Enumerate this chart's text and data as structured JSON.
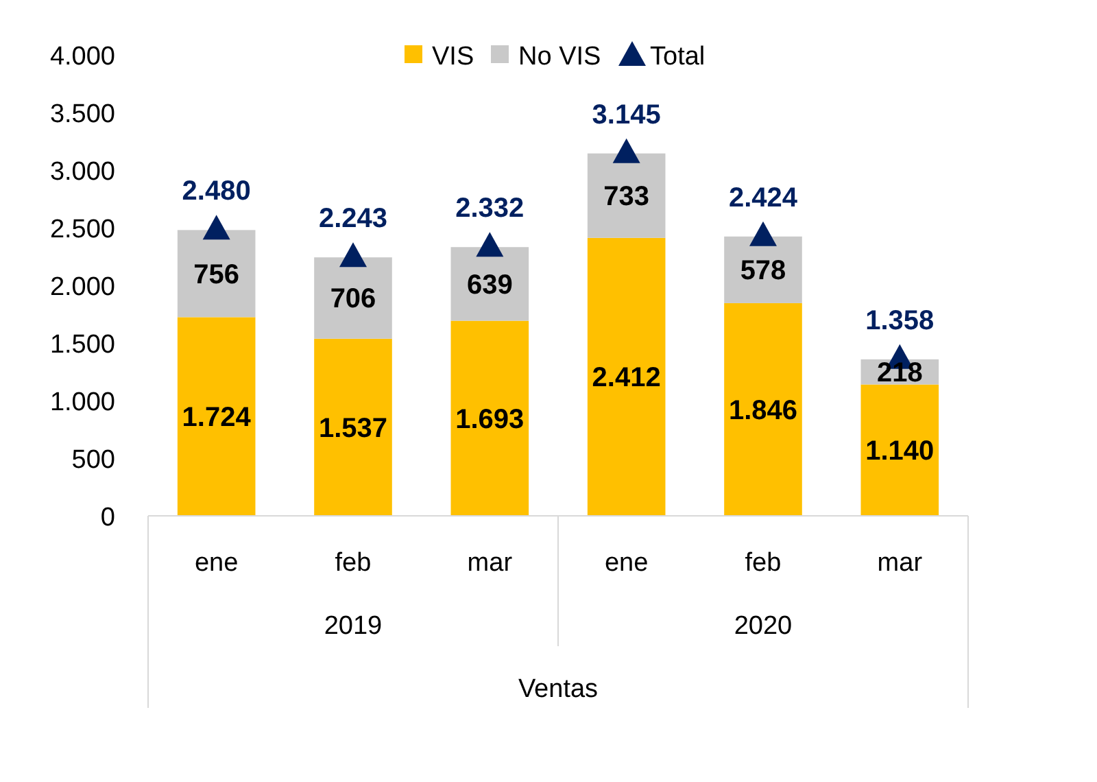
{
  "chart_data": {
    "type": "bar",
    "stacked": true,
    "categories": [
      "ene",
      "feb",
      "mar",
      "ene",
      "feb",
      "mar"
    ],
    "xlabel": "Ventas",
    "annotations": [
      "2019",
      "2020"
    ],
    "series": [
      {
        "name": "VIS",
        "color": "#ffc000",
        "values": [
          1724,
          1537,
          1693,
          2412,
          1846,
          1140
        ],
        "value_labels": [
          "1.724",
          "1.537",
          "1.693",
          "2.412",
          "1.846",
          "1.140"
        ]
      },
      {
        "name": "No VIS",
        "color": "#c9c9c9",
        "values": [
          756,
          706,
          639,
          733,
          578,
          218
        ],
        "value_labels": [
          "756",
          "706",
          "639",
          "733",
          "578",
          "218"
        ]
      },
      {
        "name": "Total",
        "type": "scatter",
        "marker": "triangle",
        "color": "#002060",
        "values": [
          2480,
          2243,
          2332,
          3145,
          2424,
          1358
        ],
        "value_labels": [
          "2.480",
          "2.243",
          "2.332",
          "3.145",
          "2.424",
          "1.358"
        ]
      }
    ],
    "ylim": [
      0,
      4000
    ],
    "yticks": [
      0,
      {
        "value": 500,
        "label": "500"
      },
      {
        "value": 1000,
        "label": "1.000"
      },
      {
        "value": 1500,
        "label": "1.500"
      },
      {
        "value": 2000,
        "label": "2.000"
      },
      {
        "value": 2500,
        "label": "2.500"
      },
      {
        "value": 3000,
        "label": "3.000"
      },
      {
        "value": 3500,
        "label": "3.500"
      },
      {
        "value": 4000,
        "label": "4.000"
      }
    ],
    "grid": false,
    "legend": "top"
  }
}
